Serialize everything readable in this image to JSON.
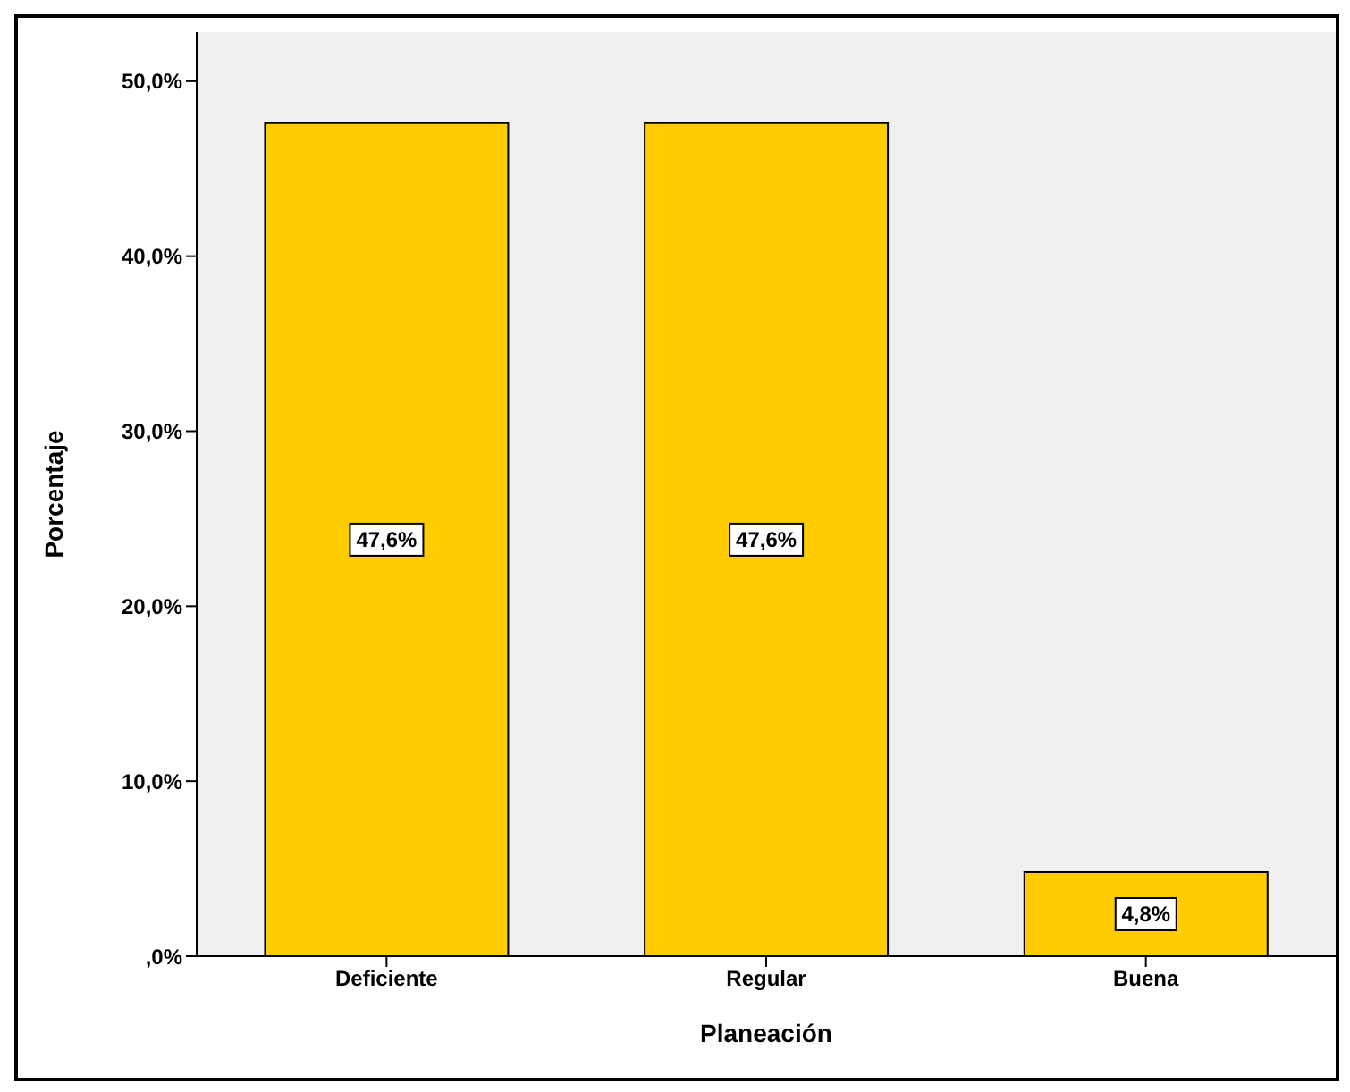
{
  "chart_data": {
    "type": "bar",
    "xlabel": "Planeación",
    "ylabel": "Porcentaje",
    "categories": [
      "Deficiente",
      "Regular",
      "Buena"
    ],
    "values": [
      47.6,
      47.6,
      4.8
    ],
    "color": "#ffcc00",
    "value_labels": [
      "47,6%",
      "47,6%",
      "4,8%"
    ],
    "ylim": [
      0,
      52.8
    ],
    "yticks": [
      {
        "value": 0,
        "label": ",0%"
      },
      {
        "value": 10,
        "label": "10,0%"
      },
      {
        "value": 20,
        "label": "20,0%"
      },
      {
        "value": 30,
        "label": "30,0%"
      },
      {
        "value": 40,
        "label": "40,0%"
      },
      {
        "value": 50,
        "label": "50,0%"
      }
    ],
    "grid": false
  }
}
